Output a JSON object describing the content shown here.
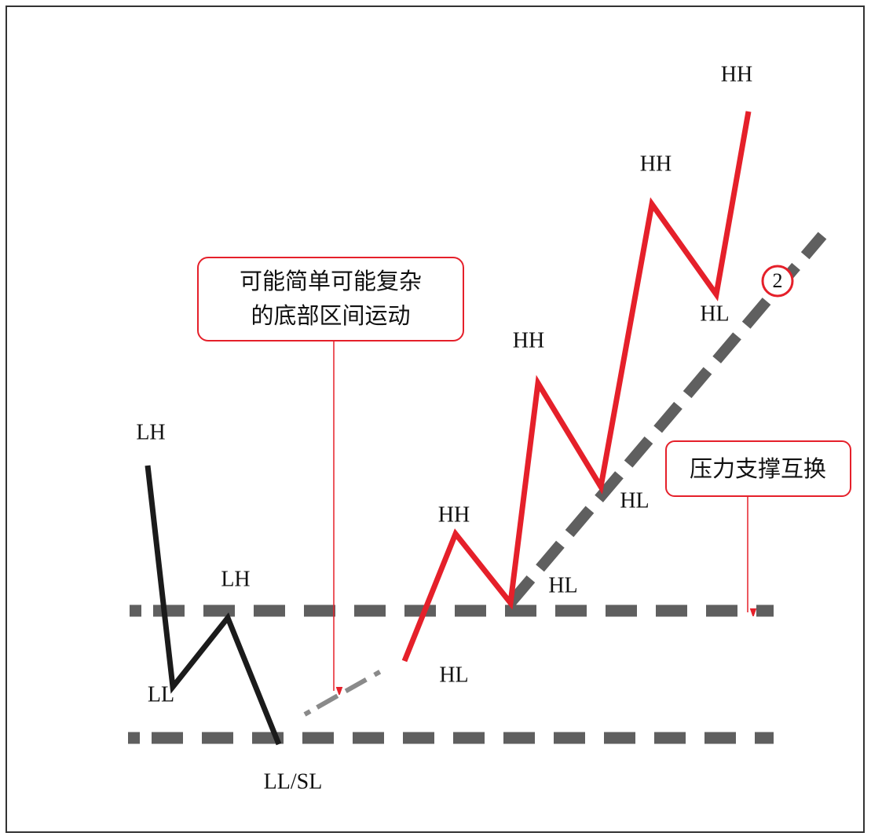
{
  "swing_labels": [
    "LH",
    "LH",
    "LL",
    "LL/SL",
    "HL",
    "HH",
    "HL",
    "HH",
    "HL",
    "HH",
    "HL",
    "HH"
  ],
  "callouts": [
    {
      "lines": [
        "可能简单可能复杂",
        "的底部区间运动"
      ]
    },
    {
      "text": "压力支撑互换"
    }
  ],
  "marker": "2"
}
